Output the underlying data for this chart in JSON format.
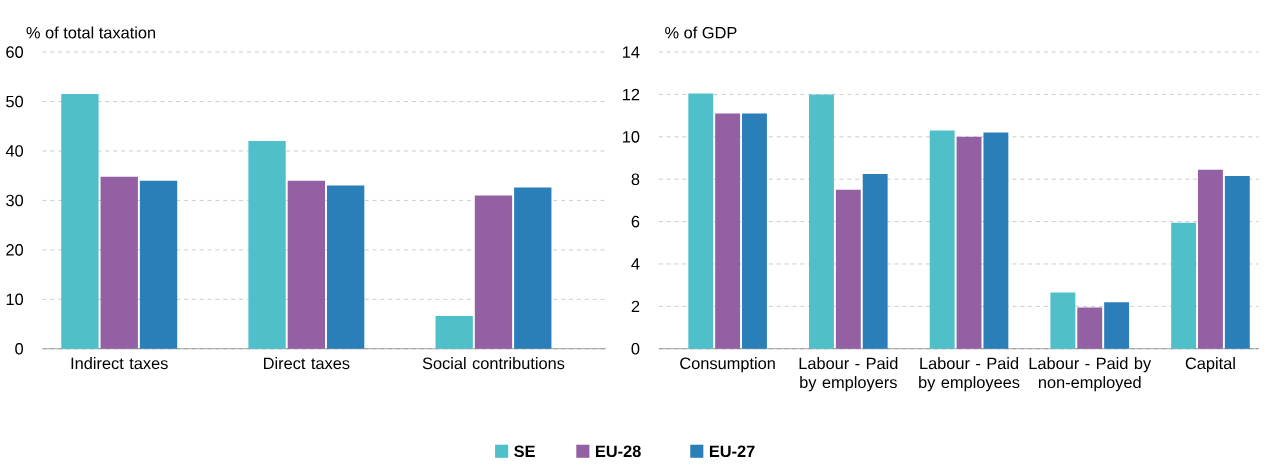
{
  "chart_data": [
    {
      "type": "bar",
      "ylabel": "% of total taxation",
      "categories": [
        "Indirect taxes",
        "Direct taxes",
        "Social contributions"
      ],
      "series": [
        {
          "name": "SE",
          "color": "#4fbfc9",
          "values": [
            51.5,
            42,
            6.6
          ]
        },
        {
          "name": "EU-28",
          "color": "#9260a3",
          "values": [
            34.8,
            34,
            31
          ]
        },
        {
          "name": "EU-27",
          "color": "#2b7fb8",
          "values": [
            34,
            33,
            32.6
          ]
        }
      ],
      "ylim": [
        0,
        60
      ],
      "yticks": [
        0,
        10,
        20,
        30,
        40,
        50,
        60
      ],
      "grid": "y",
      "legend": "bottom"
    },
    {
      "type": "bar",
      "ylabel": "% of GDP",
      "categories": [
        "Consumption",
        "Labour - Paid by employers",
        "Labour - Paid by employees",
        "Labour - Paid by non-employed",
        "Capital"
      ],
      "series": [
        {
          "color": "#4fbfc9",
          "values": [
            12.05,
            12,
            10.3,
            2.65,
            5.95
          ]
        },
        {
          "color": "#9260a3",
          "values": [
            11.1,
            7.5,
            10,
            1.95,
            8.45
          ]
        },
        {
          "color": "#2b7fb8",
          "values": [
            11.1,
            8.25,
            10.2,
            2.2,
            8.15
          ]
        }
      ],
      "ylim": [
        0,
        14
      ],
      "yticks": [
        0,
        2,
        4,
        6,
        8,
        10,
        12,
        14
      ],
      "grid": "y"
    }
  ]
}
